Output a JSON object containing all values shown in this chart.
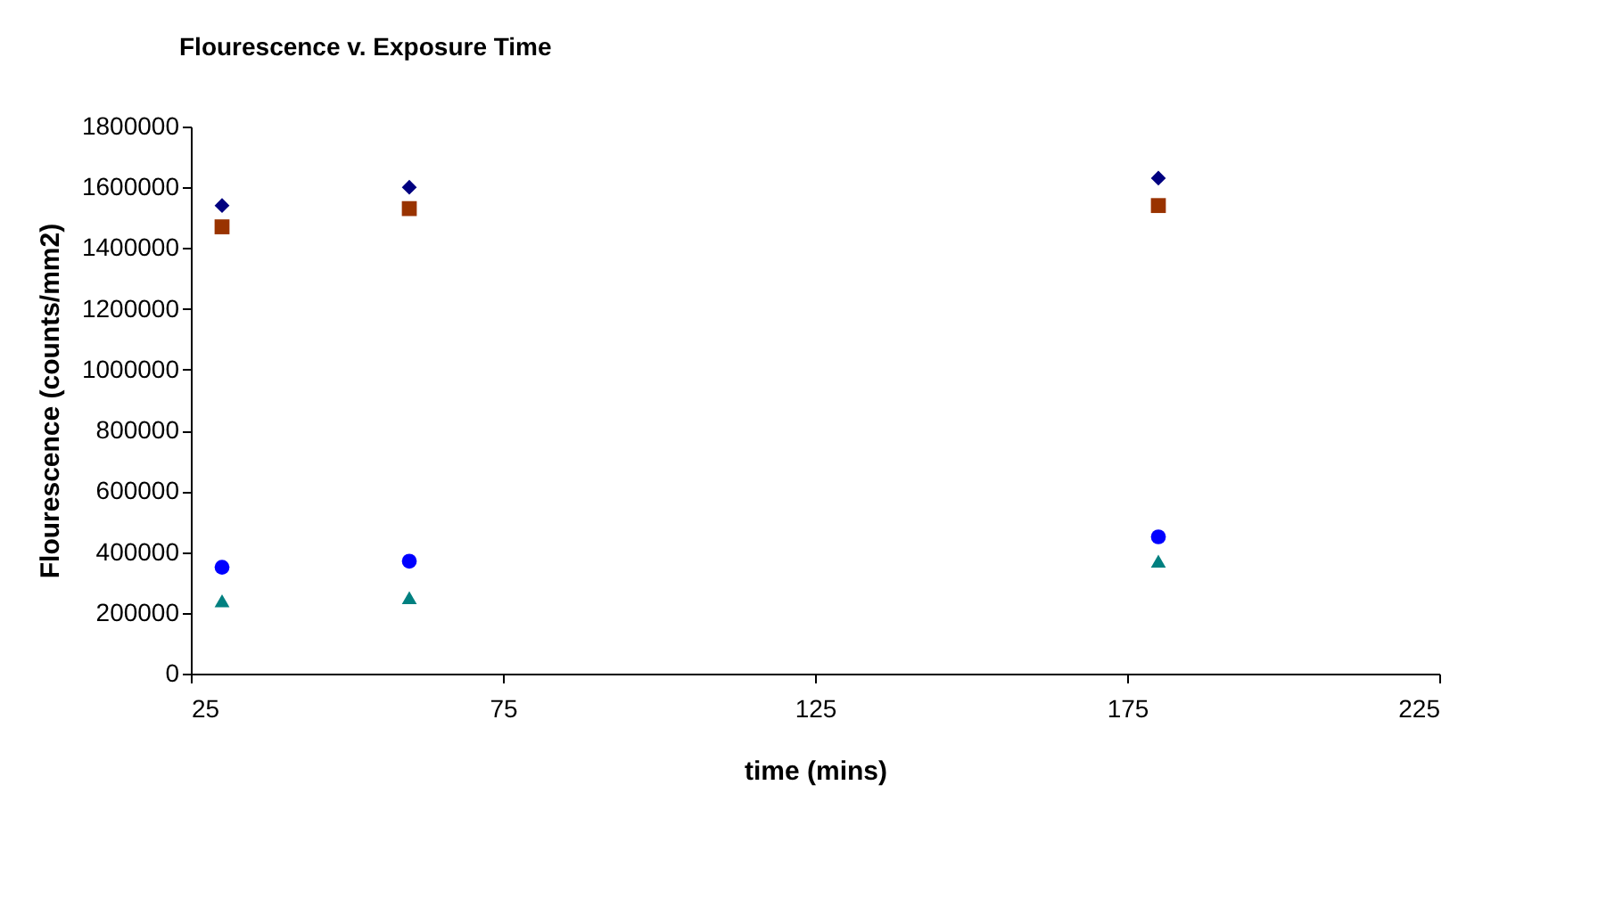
{
  "chart_data": {
    "type": "scatter",
    "title": "Flourescence v. Exposure Time",
    "xlabel": "time (mins)",
    "ylabel": "Flourescence (counts/mm2)",
    "x": [
      30,
      60,
      180
    ],
    "series": [
      {
        "color": "#000080",
        "marker": "diamond",
        "values": [
          1540000,
          1600000,
          1630000
        ]
      },
      {
        "color": "#0000ff",
        "marker": "circle",
        "values": [
          350000,
          370000,
          450000
        ]
      },
      {
        "color": "#993300",
        "marker": "square",
        "values": [
          1470000,
          1530000,
          1540000
        ]
      },
      {
        "color": "#008080",
        "marker": "triangle",
        "values": [
          240000,
          250000,
          370000
        ]
      }
    ],
    "xlim": [
      25,
      225
    ],
    "xticks": [
      25,
      75,
      125,
      175,
      225
    ],
    "ylim": [
      0,
      1800000
    ],
    "yticks": [
      0,
      200000,
      400000,
      600000,
      800000,
      1000000,
      1200000,
      1400000,
      1600000,
      1800000
    ],
    "grid": false,
    "legend": false
  }
}
